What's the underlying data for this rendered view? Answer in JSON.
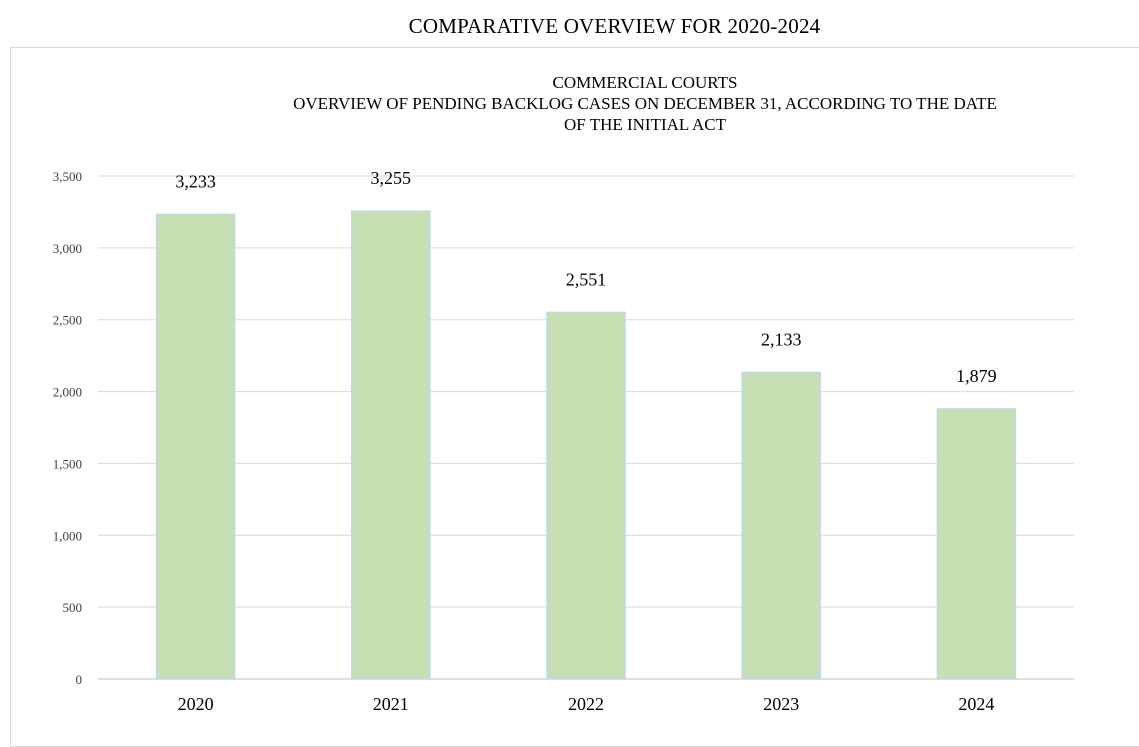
{
  "page": {
    "heading": "COMPARATIVE OVERVIEW FOR 2020-2024"
  },
  "chart_data": {
    "type": "bar",
    "title_lines": [
      "COMMERCIAL  COURTS",
      "OVERVIEW  OF PENDING BACKLOG CASES ON DECEMBER 31, ACCORDING TO THE DATE",
      "OF THE INITIAL  ACT"
    ],
    "categories": [
      "2020",
      "2021",
      "2022",
      "2023",
      "2024"
    ],
    "values": [
      3233,
      3255,
      2551,
      2133,
      1879
    ],
    "data_labels": [
      "3,233",
      "3,255",
      "2,551",
      "2,133",
      "1,879"
    ],
    "y_ticks": [
      0,
      500,
      1000,
      1500,
      2000,
      2500,
      3000,
      3500
    ],
    "y_tick_labels": [
      "0",
      "500",
      "1,000",
      "1,500",
      "2,000",
      "2,500",
      "3,000",
      "3,500"
    ],
    "ylim": [
      0,
      3500
    ],
    "xlabel": "",
    "ylabel": "",
    "grid": true,
    "legend": "none",
    "colors": {
      "bar_fill": "#c6e0b4",
      "bar_stroke": "#bdd7ee",
      "gridline": "#d9d9d9",
      "axis_line": "#bfbfbf",
      "tick_text": "#404040"
    }
  }
}
